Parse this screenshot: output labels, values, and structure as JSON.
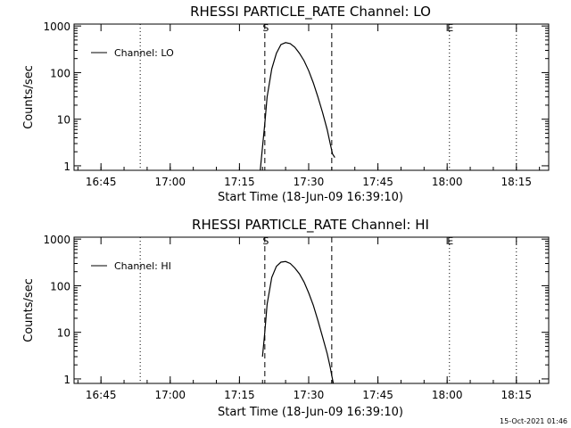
{
  "footer": {
    "timestamp": "15-Oct-2021 01:46"
  },
  "chart_data": [
    {
      "type": "line",
      "title": "RHESSI PARTICLE_RATE Channel: LO",
      "xlabel": "Start Time (18-Jun-09 16:39:10)",
      "ylabel": "Counts/sec",
      "yscale": "log",
      "ylim": [
        0.8,
        1100
      ],
      "xlim": [
        "16:39:10",
        "18:22:00"
      ],
      "x_ticks": [
        "16:45",
        "17:00",
        "17:15",
        "17:30",
        "17:45",
        "18:00",
        "18:15"
      ],
      "y_ticks": [
        "1",
        "10",
        "100",
        "1000"
      ],
      "legend": {
        "position": "top-left",
        "label": "Channel: LO"
      },
      "markers": [
        {
          "label": "S",
          "time": "17:20:30",
          "style": "dashed"
        },
        {
          "label": "",
          "time": "17:35:00",
          "style": "dashed"
        },
        {
          "label": "E",
          "time": "18:00:30",
          "style": "dotted"
        }
      ],
      "vlines_dotted": [
        "16:53:30",
        "18:15:00"
      ],
      "series": [
        {
          "name": "Channel: LO",
          "x": [
            "17:19:30",
            "17:20:00",
            "17:20:30",
            "17:21:00",
            "17:22:00",
            "17:23:00",
            "17:24:00",
            "17:25:00",
            "17:26:00",
            "17:27:00",
            "17:28:00",
            "17:29:00",
            "17:30:00",
            "17:31:00",
            "17:32:00",
            "17:33:00",
            "17:34:00",
            "17:34:40",
            "17:35:10",
            "17:35:40"
          ],
          "y": [
            0.8,
            2.5,
            8,
            30,
            120,
            260,
            400,
            440,
            420,
            350,
            260,
            180,
            110,
            60,
            30,
            14,
            6,
            3,
            1.8,
            1.5
          ]
        }
      ]
    },
    {
      "type": "line",
      "title": "RHESSI PARTICLE_RATE Channel: HI",
      "xlabel": "Start Time (18-Jun-09 16:39:10)",
      "ylabel": "Counts/sec",
      "yscale": "log",
      "ylim": [
        0.8,
        1100
      ],
      "xlim": [
        "16:39:10",
        "18:22:00"
      ],
      "x_ticks": [
        "16:45",
        "17:00",
        "17:15",
        "17:30",
        "17:45",
        "18:00",
        "18:15"
      ],
      "y_ticks": [
        "1",
        "10",
        "100",
        "1000"
      ],
      "legend": {
        "position": "top-left",
        "label": "Channel: HI"
      },
      "markers": [
        {
          "label": "S",
          "time": "17:20:30",
          "style": "dashed"
        },
        {
          "label": "",
          "time": "17:35:00",
          "style": "dashed"
        },
        {
          "label": "E",
          "time": "18:00:30",
          "style": "dotted"
        }
      ],
      "vlines_dotted": [
        "16:53:30",
        "18:15:00"
      ],
      "series": [
        {
          "name": "Channel: HI",
          "x": [
            "17:20:00",
            "17:20:30",
            "17:21:00",
            "17:22:00",
            "17:23:00",
            "17:24:00",
            "17:25:00",
            "17:26:00",
            "17:27:00",
            "17:28:00",
            "17:29:00",
            "17:30:00",
            "17:31:00",
            "17:32:00",
            "17:33:00",
            "17:34:00",
            "17:34:40",
            "17:35:00",
            "17:35:20"
          ],
          "y": [
            3,
            10,
            40,
            150,
            260,
            320,
            330,
            300,
            240,
            180,
            120,
            70,
            38,
            18,
            8,
            3.5,
            1.8,
            1.2,
            0.8
          ]
        }
      ]
    }
  ]
}
